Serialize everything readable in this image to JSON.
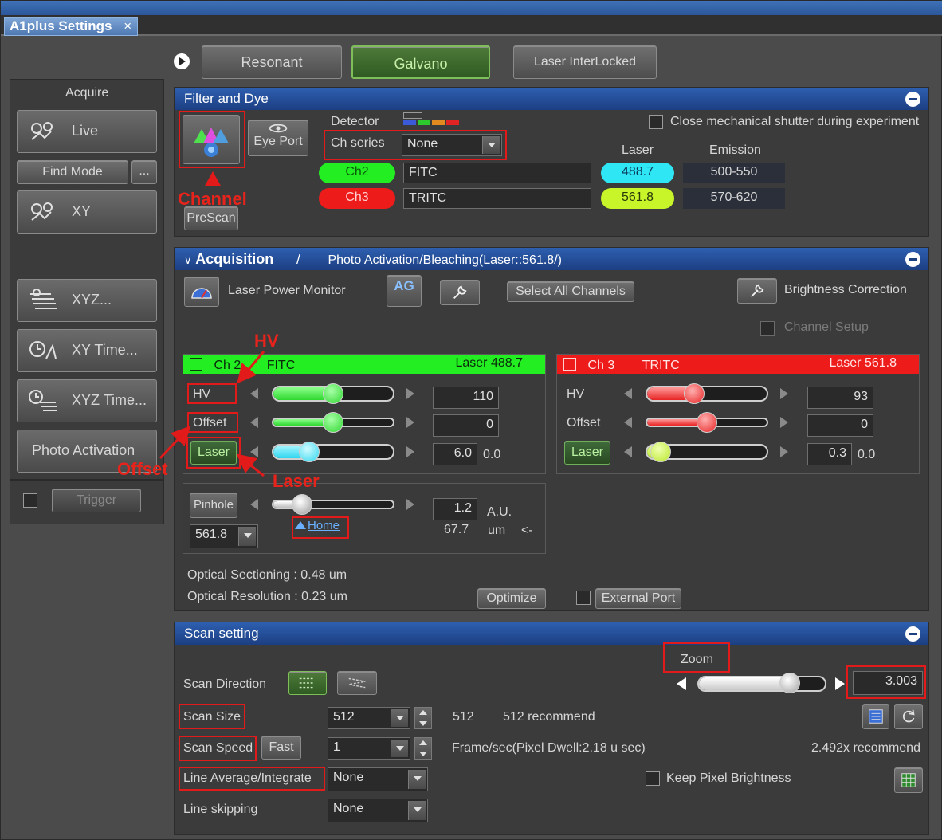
{
  "window": {
    "tab_title": "A1plus Settings",
    "tab_close": "×"
  },
  "mode_buttons": {
    "resonant": "Resonant",
    "galvano": "Galvano",
    "laser_interlocked": "Laser InterLocked"
  },
  "sidebar": {
    "acquire_label": "Acquire",
    "live": "Live",
    "find_mode": "Find Mode",
    "find_mode_more": "...",
    "xy": "XY",
    "xyz": "XYZ...",
    "xy_time": "XY Time...",
    "xyz_time": "XYZ Time...",
    "photo_activation": "Photo Activation",
    "trigger": "Trigger"
  },
  "filter_dye": {
    "title": "Filter and Dye",
    "eye_port": "Eye Port",
    "prescan": "PreScan",
    "detector_label": "Detector",
    "ch_series_label": "Ch series",
    "ch_series_value": "None",
    "close_shutter": "Close mechanical shutter during experiment",
    "laser_header": "Laser",
    "emission_header": "Emission",
    "channels": [
      {
        "name": "Ch2",
        "dye": "FITC",
        "laser": "488.7",
        "emission": "500-550"
      },
      {
        "name": "Ch3",
        "dye": "TRITC",
        "laser": "561.8",
        "emission": "570-620"
      }
    ]
  },
  "acquisition": {
    "title": "Acquisition",
    "separator": "/",
    "subtitle": "Photo Activation/Bleaching(Laser::561.8/)",
    "laser_power_monitor": "Laser Power Monitor",
    "ag_label": "AG",
    "select_all_channels": "Select All Channels",
    "brightness_correction": "Brightness Correction",
    "channel_setup": "Channel Setup",
    "ch2": {
      "name": "Ch 2",
      "dye": "FITC",
      "laser": "Laser 488.7",
      "hv_label": "HV",
      "hv_value": "110",
      "hv_level": 0.5,
      "offset_label": "Offset",
      "offset_value": "0",
      "offset_level": 0.5,
      "laser_label": "Laser",
      "laser_value": "6.0",
      "laser_extra": "0.0",
      "laser_level": 0.27
    },
    "ch3": {
      "name": "Ch 3",
      "dye": "TRITC",
      "laser": "Laser 561.8",
      "hv_label": "HV",
      "hv_value": "93",
      "hv_level": 0.38,
      "offset_label": "Offset",
      "offset_value": "0",
      "offset_level": 0.5,
      "laser_label": "Laser",
      "laser_value": "0.3",
      "laser_extra": "0.0",
      "laser_level": 0.05
    },
    "pinhole": {
      "label": "Pinhole",
      "value": "1.2",
      "unit": "A.U.",
      "um_value": "67.7",
      "um_unit": "um",
      "arrow": "<-",
      "wavelength": "561.8",
      "home": "Home",
      "level": 0.2
    },
    "optical_sectioning": "Optical Sectioning : 0.48 um",
    "optical_resolution": "Optical Resolution : 0.23 um",
    "optimize": "Optimize",
    "external_port": "External Port"
  },
  "scan_setting": {
    "title": "Scan setting",
    "zoom_label": "Zoom",
    "zoom_value": "3.003",
    "zoom_level": 0.75,
    "scan_direction": "Scan Direction",
    "scan_size_label": "Scan Size",
    "scan_size_value": "512",
    "scan_size_x": "512",
    "scan_size_recommend": "512 recommend",
    "scan_speed_label": "Scan Speed",
    "fast": "Fast",
    "scan_speed_value": "1",
    "frame_sec": "Frame/sec(Pixel Dwell:2.18 u sec)",
    "speed_recommend": "2.492x recommend",
    "line_average_label": "Line Average/Integrate",
    "line_average_value": "None",
    "keep_pixel_brightness": "Keep Pixel Brightness",
    "line_skipping_label": "Line skipping",
    "line_skipping_value": "None"
  },
  "annotations": {
    "channel": "Channel",
    "hv": "HV",
    "offset": "Offset",
    "laser": "Laser"
  },
  "colors": {
    "green": "#22ee22",
    "red": "#ee1b1b",
    "cyan": "#2fe6f5",
    "yellow_green": "#c8f52a",
    "annotation_red": "#e21a1a"
  }
}
